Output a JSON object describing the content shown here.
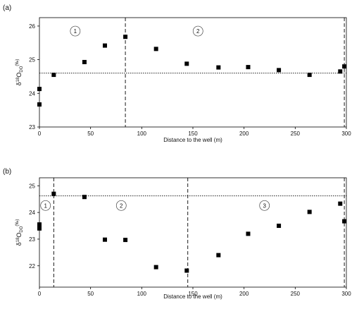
{
  "chart_data": [
    {
      "type": "scatter",
      "panel_label": "(a)",
      "xlabel": "Distance to the well (m)",
      "ylabel": {
        "base": "δ",
        "sup": "18",
        "main": "O",
        "sub": "DO",
        "unit": "(‰)"
      },
      "xlim": [
        0,
        300
      ],
      "ylim": [
        23,
        26.25
      ],
      "xticks": [
        0,
        50,
        100,
        150,
        200,
        250,
        300
      ],
      "yticks": [
        23,
        24,
        25,
        26
      ],
      "grid": false,
      "reference_line_y": 24.6,
      "zone_boundaries_x": [
        84,
        298
      ],
      "zone_labels": [
        {
          "text": "1",
          "x": 35,
          "y": 25.85
        },
        {
          "text": "2",
          "x": 155,
          "y": 25.85
        }
      ],
      "points": [
        {
          "x": 0,
          "y": 24.13
        },
        {
          "x": 0,
          "y": 23.67
        },
        {
          "x": 14,
          "y": 24.55
        },
        {
          "x": 44,
          "y": 24.93
        },
        {
          "x": 64,
          "y": 25.42
        },
        {
          "x": 84,
          "y": 25.68
        },
        {
          "x": 114,
          "y": 25.32
        },
        {
          "x": 144,
          "y": 24.88
        },
        {
          "x": 175,
          "y": 24.77
        },
        {
          "x": 204,
          "y": 24.78
        },
        {
          "x": 234,
          "y": 24.69
        },
        {
          "x": 264,
          "y": 24.55
        },
        {
          "x": 294,
          "y": 24.65
        },
        {
          "x": 298,
          "y": 24.8
        }
      ]
    },
    {
      "type": "scatter",
      "panel_label": "(b)",
      "xlabel": "Distance to the well (m)",
      "ylabel": {
        "base": "δ",
        "sup": "18",
        "main": "O",
        "sub": "DO",
        "unit": "(‰)"
      },
      "xlim": [
        0,
        300
      ],
      "ylim": [
        21.2,
        25.3
      ],
      "xticks": [
        0,
        50,
        100,
        150,
        200,
        250,
        300
      ],
      "yticks": [
        22,
        23,
        24,
        25
      ],
      "grid": false,
      "reference_line_y": 24.62,
      "zone_boundaries_x": [
        14,
        145,
        298
      ],
      "zone_labels": [
        {
          "text": "1",
          "x": 6,
          "y": 24.26
        },
        {
          "text": "2",
          "x": 80,
          "y": 24.26
        },
        {
          "text": "3",
          "x": 220,
          "y": 24.26
        }
      ],
      "points": [
        {
          "x": 0,
          "y": 23.55
        },
        {
          "x": 0,
          "y": 23.4
        },
        {
          "x": 14,
          "y": 24.7
        },
        {
          "x": 44,
          "y": 24.58
        },
        {
          "x": 64,
          "y": 22.98
        },
        {
          "x": 84,
          "y": 22.97
        },
        {
          "x": 114,
          "y": 21.95
        },
        {
          "x": 144,
          "y": 21.82
        },
        {
          "x": 175,
          "y": 22.4
        },
        {
          "x": 204,
          "y": 23.2
        },
        {
          "x": 234,
          "y": 23.5
        },
        {
          "x": 264,
          "y": 24.02
        },
        {
          "x": 294,
          "y": 24.33
        },
        {
          "x": 298,
          "y": 23.67
        }
      ]
    }
  ]
}
